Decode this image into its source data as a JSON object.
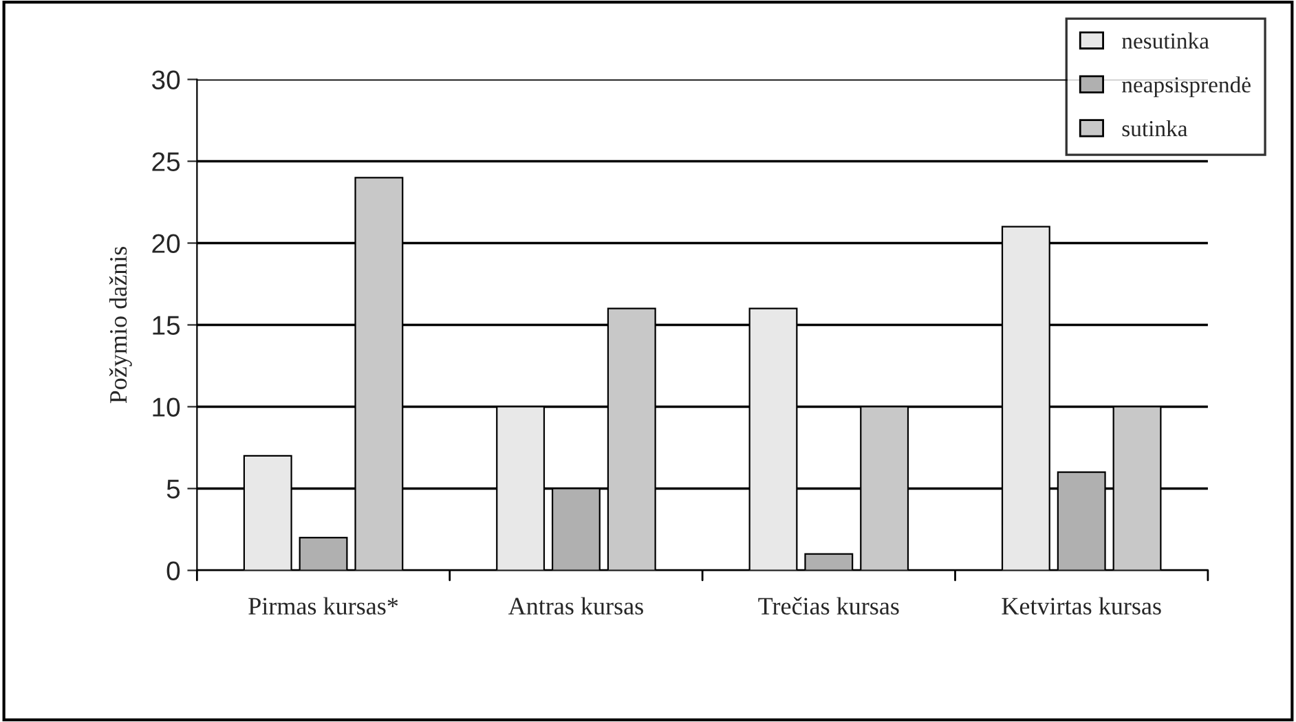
{
  "chart_data": {
    "type": "bar",
    "ylabel": "Požymio dažnis",
    "categories": [
      "Pirmas kursas*",
      "Antras kursas",
      "Trečias kursas",
      "Ketvirtas kursas"
    ],
    "series": [
      {
        "name": "nesutinka",
        "color": "#e8e8e8",
        "values": [
          7,
          10,
          16,
          21
        ]
      },
      {
        "name": "neapsisprendė",
        "color": "#b0b0b0",
        "values": [
          2,
          5,
          1,
          6
        ]
      },
      {
        "name": "sutinka",
        "color": "#c8c8c8",
        "values": [
          24,
          16,
          10,
          10
        ]
      }
    ],
    "ylim": [
      0,
      30
    ],
    "yticks": [
      0,
      5,
      10,
      15,
      20,
      25,
      30
    ],
    "grid": "y",
    "legend": "top right"
  }
}
